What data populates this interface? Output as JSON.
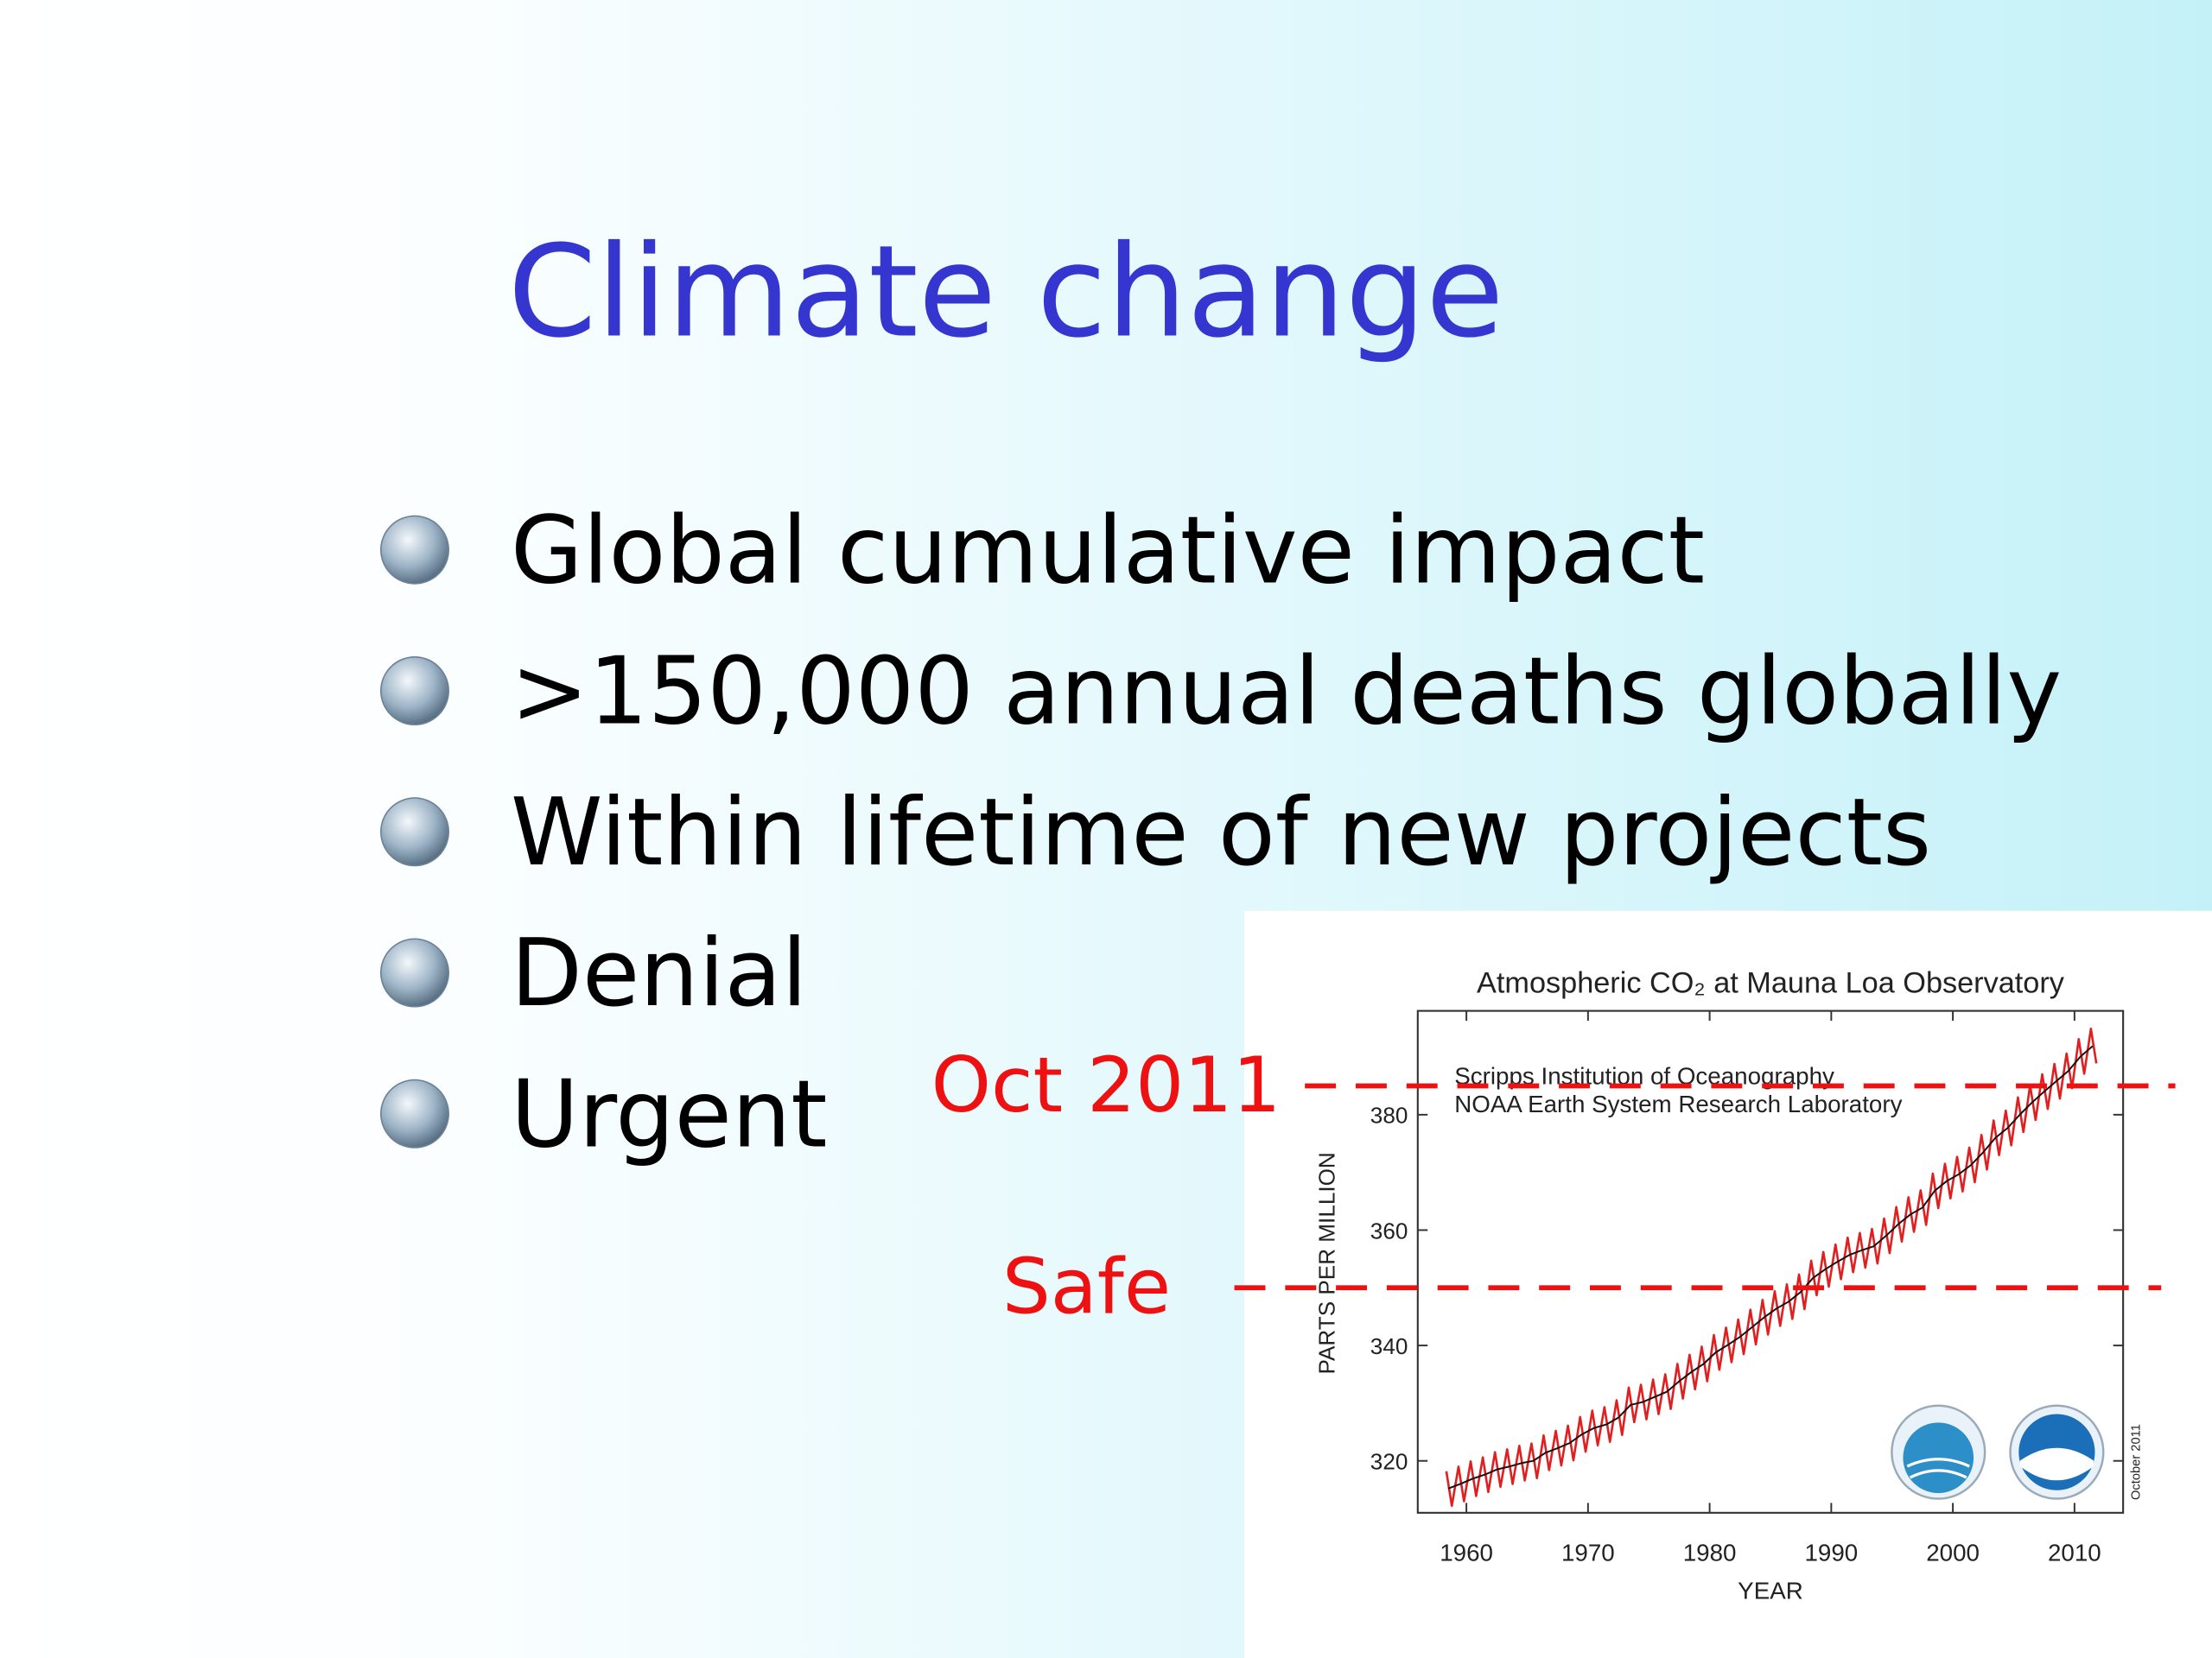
{
  "slide": {
    "title": "Climate change",
    "bullets": [
      "Global cumulative impact",
      ">150,000 annual deaths globally",
      "Within lifetime of new projects",
      "Denial",
      "Urgent"
    ]
  },
  "chart_data": {
    "type": "line",
    "title": "Atmospheric CO₂ at Mauna Loa Observatory",
    "xlabel": "YEAR",
    "ylabel": "PARTS PER MILLION",
    "annotations": [
      "Scripps Institution of Oceanography",
      "NOAA Earth System Research Laboratory"
    ],
    "side_note": "October 2011",
    "xlim": [
      1956,
      2014
    ],
    "ylim": [
      311,
      398
    ],
    "xticks": [
      1960,
      1970,
      1980,
      1990,
      2000,
      2010
    ],
    "yticks": [
      320,
      340,
      360,
      380
    ],
    "reference_lines": [
      {
        "label": "Oct 2011",
        "value": 385,
        "color": "#ee1111"
      },
      {
        "label": "Safe",
        "value": 350,
        "color": "#ee1111"
      }
    ],
    "series": [
      {
        "color": "#e02020",
        "x": [
          1958.35,
          1958.8,
          1959.35,
          1959.8,
          1960.35,
          1960.8,
          1961.35,
          1961.8,
          1962.35,
          1962.8,
          1963.35,
          1963.8,
          1964.35,
          1964.8,
          1965.35,
          1965.8,
          1966.35,
          1966.8,
          1967.35,
          1967.8,
          1968.35,
          1968.8,
          1969.35,
          1969.8,
          1970.35,
          1970.8,
          1971.35,
          1971.8,
          1972.35,
          1972.8,
          1973.35,
          1973.8,
          1974.35,
          1974.8,
          1975.35,
          1975.8,
          1976.35,
          1976.8,
          1977.35,
          1977.8,
          1978.35,
          1978.8,
          1979.35,
          1979.8,
          1980.35,
          1980.8,
          1981.35,
          1981.8,
          1982.35,
          1982.8,
          1983.35,
          1983.8,
          1984.35,
          1984.8,
          1985.35,
          1985.8,
          1986.35,
          1986.8,
          1987.35,
          1987.8,
          1988.35,
          1988.8,
          1989.35,
          1989.8,
          1990.35,
          1990.8,
          1991.35,
          1991.8,
          1992.35,
          1992.8,
          1993.35,
          1993.8,
          1994.35,
          1994.8,
          1995.35,
          1995.8,
          1996.35,
          1996.8,
          1997.35,
          1997.8,
          1998.35,
          1998.8,
          1999.35,
          1999.8,
          2000.35,
          2000.8,
          2001.35,
          2001.8,
          2002.35,
          2002.8,
          2003.35,
          2003.8,
          2004.35,
          2004.8,
          2005.35,
          2005.8,
          2006.35,
          2006.8,
          2007.35,
          2007.8,
          2008.35,
          2008.8,
          2009.35,
          2009.8,
          2010.35,
          2010.8,
          2011.35,
          2011.8
        ],
        "values": [
          318.2,
          312.2,
          319.0,
          313.0,
          319.9,
          313.9,
          320.6,
          314.6,
          321.5,
          315.5,
          322.0,
          316.0,
          322.6,
          316.6,
          323.0,
          317.0,
          324.4,
          318.4,
          325.2,
          319.2,
          326.1,
          320.1,
          327.6,
          321.6,
          328.7,
          322.7,
          329.3,
          323.3,
          330.5,
          324.5,
          332.7,
          326.7,
          333.2,
          327.2,
          334.1,
          328.1,
          335.0,
          329.0,
          336.8,
          330.8,
          338.4,
          332.4,
          339.8,
          333.8,
          341.8,
          335.8,
          343.1,
          337.1,
          344.5,
          338.5,
          346.2,
          340.2,
          347.9,
          341.9,
          349.4,
          343.4,
          350.6,
          344.6,
          352.3,
          346.3,
          354.7,
          348.7,
          356.2,
          350.2,
          357.5,
          351.5,
          358.7,
          352.7,
          359.5,
          353.5,
          360.2,
          354.2,
          362.0,
          356.0,
          364.0,
          358.0,
          365.7,
          359.7,
          366.9,
          360.9,
          369.8,
          363.8,
          371.5,
          365.5,
          372.7,
          366.7,
          374.3,
          368.3,
          376.5,
          370.5,
          379.0,
          373.0,
          380.7,
          374.7,
          383.0,
          377.0,
          385.1,
          379.1,
          387.0,
          381.0,
          388.8,
          382.8,
          390.6,
          384.6,
          393.1,
          387.1,
          394.9,
          388.9
        ]
      },
      {
        "color": "#111111",
        "x": [
          1958.5,
          1959.5,
          1960.5,
          1961.5,
          1962.5,
          1963.5,
          1964.5,
          1965.5,
          1966.5,
          1967.5,
          1968.5,
          1969.5,
          1970.5,
          1971.5,
          1972.5,
          1973.5,
          1974.5,
          1975.5,
          1976.5,
          1977.5,
          1978.5,
          1979.5,
          1980.5,
          1981.5,
          1982.5,
          1983.5,
          1984.5,
          1985.5,
          1986.5,
          1987.5,
          1988.5,
          1989.5,
          1990.5,
          1991.5,
          1992.5,
          1993.5,
          1994.5,
          1995.5,
          1996.5,
          1997.5,
          1998.5,
          1999.5,
          2000.5,
          2001.5,
          2002.5,
          2003.5,
          2004.5,
          2005.5,
          2006.5,
          2007.5,
          2008.5,
          2009.5,
          2010.5,
          2011.5
        ],
        "values": [
          315.2,
          316.0,
          316.9,
          317.6,
          318.5,
          319.0,
          319.6,
          320.0,
          321.4,
          322.2,
          323.1,
          324.6,
          325.7,
          326.3,
          327.5,
          329.7,
          330.2,
          331.1,
          332.0,
          333.8,
          335.4,
          336.8,
          338.8,
          340.1,
          341.5,
          343.2,
          344.9,
          346.4,
          347.6,
          349.3,
          351.7,
          353.2,
          354.5,
          355.7,
          356.5,
          357.2,
          359.0,
          361.0,
          362.7,
          363.9,
          366.8,
          368.5,
          369.7,
          371.3,
          373.5,
          376.0,
          377.7,
          380.0,
          382.1,
          384.0,
          385.8,
          387.6,
          390.1,
          391.9
        ]
      }
    ]
  }
}
